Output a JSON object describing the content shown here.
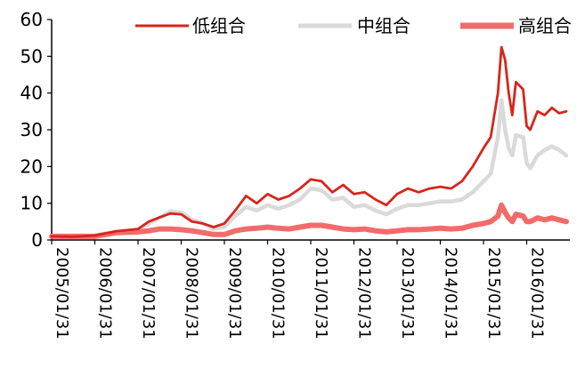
{
  "chart_data": {
    "type": "line",
    "title": "",
    "xlabel": "",
    "ylabel": "",
    "ylim": [
      0,
      60
    ],
    "yticks": [
      0,
      10,
      20,
      30,
      40,
      50,
      60
    ],
    "x_tick_labels": [
      "2005/01/31",
      "2006/01/31",
      "2007/01/31",
      "2008/01/31",
      "2009/01/31",
      "2010/01/31",
      "2011/01/31",
      "2012/01/31",
      "2013/01/31",
      "2014/01/31",
      "2015/01/31",
      "2016/01/31"
    ],
    "legend_position": "top",
    "grid": false,
    "x": [
      "2005-01",
      "2005-07",
      "2006-01",
      "2006-07",
      "2007-01",
      "2007-04",
      "2007-07",
      "2007-10",
      "2008-01",
      "2008-04",
      "2008-07",
      "2008-10",
      "2009-01",
      "2009-04",
      "2009-07",
      "2009-10",
      "2010-01",
      "2010-04",
      "2010-07",
      "2010-10",
      "2011-01",
      "2011-04",
      "2011-07",
      "2011-10",
      "2012-01",
      "2012-04",
      "2012-07",
      "2012-10",
      "2013-01",
      "2013-04",
      "2013-07",
      "2013-10",
      "2014-01",
      "2014-04",
      "2014-07",
      "2014-10",
      "2015-01",
      "2015-03",
      "2015-05",
      "2015-06",
      "2015-07",
      "2015-08",
      "2015-09",
      "2015-10",
      "2015-12",
      "2016-01",
      "2016-02",
      "2016-04",
      "2016-06",
      "2016-08",
      "2016-10",
      "2016-12"
    ],
    "series": [
      {
        "name": "低组合",
        "color": "#d7251c",
        "values": [
          1.0,
          0.9,
          1.2,
          2.4,
          3.0,
          5.0,
          6.2,
          7.2,
          7.0,
          5.0,
          4.5,
          3.5,
          4.5,
          8.0,
          12.0,
          10.0,
          12.5,
          11.0,
          12.0,
          14.0,
          16.5,
          16.0,
          13.0,
          15.0,
          12.5,
          13.0,
          11.0,
          9.5,
          12.5,
          14.0,
          13.0,
          14.0,
          14.5,
          14.0,
          16.0,
          20.0,
          25.0,
          28.0,
          40.0,
          52.5,
          49.0,
          40.0,
          34.0,
          43.0,
          41.0,
          31.0,
          30.0,
          35.0,
          34.0,
          36.0,
          34.5,
          35.0
        ]
      },
      {
        "name": "中组合",
        "color": "#dadada",
        "values": [
          1.0,
          0.9,
          1.2,
          2.2,
          2.8,
          4.5,
          6.0,
          7.8,
          7.5,
          5.5,
          4.5,
          3.0,
          3.5,
          6.5,
          9.0,
          8.0,
          9.5,
          8.5,
          9.5,
          11.0,
          14.0,
          13.5,
          11.0,
          11.5,
          9.0,
          9.5,
          8.0,
          7.0,
          8.5,
          9.5,
          9.5,
          10.0,
          10.5,
          10.5,
          11.0,
          13.0,
          16.0,
          18.0,
          28.0,
          38.0,
          30.0,
          25.0,
          23.0,
          28.5,
          28.0,
          21.0,
          19.5,
          23.0,
          24.5,
          25.5,
          24.5,
          23.0
        ]
      },
      {
        "name": "高组合",
        "color": "#f26b6b",
        "values": [
          1.0,
          1.0,
          1.0,
          2.0,
          2.2,
          2.5,
          3.0,
          3.0,
          2.8,
          2.5,
          2.0,
          1.5,
          1.5,
          2.5,
          3.0,
          3.2,
          3.5,
          3.2,
          3.0,
          3.5,
          4.0,
          4.0,
          3.5,
          3.0,
          2.8,
          3.0,
          2.5,
          2.2,
          2.5,
          2.8,
          2.8,
          3.0,
          3.2,
          3.0,
          3.2,
          4.0,
          4.5,
          5.0,
          6.5,
          9.5,
          7.5,
          6.0,
          5.0,
          7.0,
          6.5,
          5.0,
          5.0,
          6.0,
          5.5,
          6.0,
          5.5,
          5.0
        ]
      }
    ]
  }
}
